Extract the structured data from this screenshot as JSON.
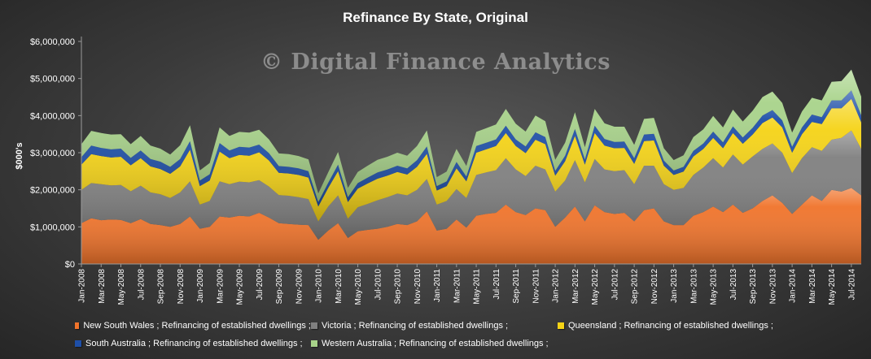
{
  "chart_data": {
    "type": "area",
    "stacked": true,
    "title": "Refinance  By State, Original",
    "watermark": "© Digital Finance Analytics",
    "ylabel": "$000's",
    "xlabel": "",
    "ylim": [
      0,
      6000000
    ],
    "y_ticks": [
      "$0",
      "$1,000,000",
      "$2,000,000",
      "$3,000,000",
      "$4,000,000",
      "$5,000,000",
      "$6,000,000"
    ],
    "y_tick_values": [
      0,
      1000000,
      2000000,
      3000000,
      4000000,
      5000000,
      6000000
    ],
    "grid": false,
    "legend_position": "bottom",
    "x": [
      "Jan-2008",
      "Feb-2008",
      "Mar-2008",
      "Apr-2008",
      "May-2008",
      "Jun-2008",
      "Jul-2008",
      "Aug-2008",
      "Sep-2008",
      "Oct-2008",
      "Nov-2008",
      "Dec-2008",
      "Jan-2009",
      "Feb-2009",
      "Mar-2009",
      "Apr-2009",
      "May-2009",
      "Jun-2009",
      "Jul-2009",
      "Aug-2009",
      "Sep-2009",
      "Oct-2009",
      "Nov-2009",
      "Dec-2009",
      "Jan-2010",
      "Feb-2010",
      "Mar-2010",
      "Apr-2010",
      "May-2010",
      "Jun-2010",
      "Jul-2010",
      "Aug-2010",
      "Sep-2010",
      "Oct-2010",
      "Nov-2010",
      "Dec-2010",
      "Jan-2011",
      "Feb-2011",
      "Mar-2011",
      "Apr-2011",
      "May-2011",
      "Jun-2011",
      "Jul-2011",
      "Aug-2011",
      "Sep-2011",
      "Oct-2011",
      "Nov-2011",
      "Dec-2011",
      "Jan-2012",
      "Feb-2012",
      "Mar-2012",
      "Apr-2012",
      "May-2012",
      "Jun-2012",
      "Jul-2012",
      "Aug-2012",
      "Sep-2012",
      "Oct-2012",
      "Nov-2012",
      "Dec-2012",
      "Jan-2013",
      "Feb-2013",
      "Mar-2013",
      "Apr-2013",
      "May-2013",
      "Jun-2013",
      "Jul-2013",
      "Aug-2013",
      "Sep-2013",
      "Oct-2013",
      "Nov-2013",
      "Dec-2013",
      "Jan-2014",
      "Feb-2014",
      "Mar-2014",
      "Apr-2014",
      "May-2014",
      "Jun-2014",
      "Jul-2014",
      "Aug-2014"
    ],
    "x_tick_labels": [
      "Jan-2008",
      "Mar-2008",
      "May-2008",
      "Jul-2008",
      "Sep-2008",
      "Nov-2008",
      "Jan-2009",
      "Mar-2009",
      "May-2009",
      "Jul-2009",
      "Sep-2009",
      "Nov-2009",
      "Jan-2010",
      "Mar-2010",
      "May-2010",
      "Jul-2010",
      "Sep-2010",
      "Nov-2010",
      "Jan-2011",
      "Mar-2011",
      "May-2011",
      "Jul-2011",
      "Sep-2011",
      "Nov-2011",
      "Jan-2012",
      "Mar-2012",
      "May-2012",
      "Jul-2012",
      "Sep-2012",
      "Nov-2012",
      "Jan-2013",
      "Mar-2013",
      "May-2013",
      "Jul-2013",
      "Sep-2013",
      "Nov-2013",
      "Jan-2014",
      "Mar-2014",
      "May-2014",
      "Jul-2014"
    ],
    "series": [
      {
        "name": "New South Wales ;  Refinancing of established dwellings ;",
        "color": "#f0732a",
        "values": [
          1100000,
          1230000,
          1180000,
          1200000,
          1190000,
          1100000,
          1210000,
          1080000,
          1050000,
          1000000,
          1080000,
          1280000,
          950000,
          1000000,
          1280000,
          1250000,
          1300000,
          1280000,
          1380000,
          1250000,
          1100000,
          1080000,
          1060000,
          1050000,
          650000,
          900000,
          1100000,
          700000,
          880000,
          920000,
          950000,
          1000000,
          1080000,
          1050000,
          1150000,
          1420000,
          900000,
          950000,
          1200000,
          980000,
          1300000,
          1350000,
          1380000,
          1600000,
          1400000,
          1320000,
          1500000,
          1450000,
          1000000,
          1250000,
          1550000,
          1150000,
          1580000,
          1400000,
          1350000,
          1380000,
          1150000,
          1450000,
          1500000,
          1150000,
          1050000,
          1050000,
          1300000,
          1400000,
          1550000,
          1400000,
          1600000,
          1380000,
          1500000,
          1700000,
          1850000,
          1650000,
          1350000,
          1600000,
          1850000,
          1700000,
          2000000,
          1950000,
          2050000,
          1850000
        ]
      },
      {
        "name": "Victoria ;  Refinancing of established dwellings ;",
        "color": "#7f7f7f",
        "values": [
          900000,
          950000,
          970000,
          920000,
          940000,
          860000,
          900000,
          850000,
          830000,
          780000,
          850000,
          950000,
          650000,
          700000,
          950000,
          900000,
          920000,
          920000,
          880000,
          840000,
          760000,
          760000,
          740000,
          700000,
          500000,
          650000,
          750000,
          520000,
          650000,
          700000,
          770000,
          800000,
          820000,
          800000,
          850000,
          870000,
          700000,
          750000,
          820000,
          800000,
          1100000,
          1120000,
          1150000,
          1250000,
          1150000,
          1050000,
          1150000,
          1100000,
          950000,
          1000000,
          1250000,
          1050000,
          1250000,
          1150000,
          1150000,
          1150000,
          1000000,
          1200000,
          1150000,
          1000000,
          950000,
          1000000,
          1100000,
          1200000,
          1300000,
          1200000,
          1350000,
          1300000,
          1400000,
          1400000,
          1400000,
          1350000,
          1100000,
          1250000,
          1300000,
          1350000,
          1350000,
          1450000,
          1550000,
          1250000
        ]
      },
      {
        "name": "Queensland ;  Refinancing of established dwellings ;",
        "color": "#f5d316",
        "values": [
          680000,
          780000,
          760000,
          750000,
          760000,
          700000,
          740000,
          700000,
          680000,
          650000,
          700000,
          850000,
          500000,
          550000,
          800000,
          700000,
          720000,
          720000,
          750000,
          700000,
          600000,
          600000,
          600000,
          580000,
          400000,
          500000,
          650000,
          450000,
          500000,
          550000,
          580000,
          580000,
          580000,
          560000,
          620000,
          680000,
          380000,
          400000,
          560000,
          450000,
          600000,
          620000,
          650000,
          680000,
          630000,
          620000,
          700000,
          680000,
          430000,
          520000,
          650000,
          480000,
          700000,
          640000,
          620000,
          600000,
          550000,
          660000,
          680000,
          500000,
          400000,
          440000,
          500000,
          500000,
          550000,
          520000,
          580000,
          560000,
          590000,
          700000,
          700000,
          680000,
          550000,
          650000,
          680000,
          720000,
          850000,
          800000,
          850000,
          720000
        ]
      },
      {
        "name": "South Australia ;  Refinancing of established dwellings ;",
        "color": "#1e4fa8",
        "values": [
          200000,
          230000,
          220000,
          220000,
          220000,
          200000,
          210000,
          200000,
          200000,
          190000,
          200000,
          230000,
          150000,
          170000,
          230000,
          210000,
          220000,
          220000,
          210000,
          200000,
          180000,
          180000,
          180000,
          170000,
          120000,
          140000,
          180000,
          130000,
          150000,
          160000,
          170000,
          170000,
          170000,
          170000,
          180000,
          200000,
          120000,
          130000,
          170000,
          130000,
          180000,
          180000,
          180000,
          200000,
          180000,
          180000,
          200000,
          190000,
          130000,
          150000,
          190000,
          140000,
          200000,
          180000,
          170000,
          170000,
          150000,
          180000,
          180000,
          140000,
          120000,
          130000,
          150000,
          150000,
          170000,
          160000,
          180000,
          170000,
          180000,
          200000,
          200000,
          190000,
          160000,
          180000,
          200000,
          190000,
          210000,
          210000,
          230000,
          190000
        ]
      },
      {
        "name": "Western Australia ;  Refinancing of established dwellings ;",
        "color": "#a8d38a",
        "values": [
          350000,
          400000,
          400000,
          400000,
          390000,
          370000,
          390000,
          360000,
          350000,
          330000,
          370000,
          430000,
          270000,
          300000,
          420000,
          390000,
          400000,
          400000,
          400000,
          370000,
          340000,
          340000,
          330000,
          320000,
          230000,
          280000,
          340000,
          250000,
          300000,
          320000,
          340000,
          340000,
          350000,
          340000,
          380000,
          430000,
          240000,
          260000,
          350000,
          280000,
          380000,
          390000,
          400000,
          450000,
          420000,
          400000,
          450000,
          430000,
          300000,
          350000,
          450000,
          330000,
          450000,
          420000,
          410000,
          400000,
          360000,
          420000,
          430000,
          330000,
          280000,
          310000,
          370000,
          380000,
          420000,
          400000,
          450000,
          430000,
          460000,
          500000,
          500000,
          470000,
          380000,
          430000,
          450000,
          450000,
          500000,
          520000,
          560000,
          500000
        ]
      }
    ]
  }
}
